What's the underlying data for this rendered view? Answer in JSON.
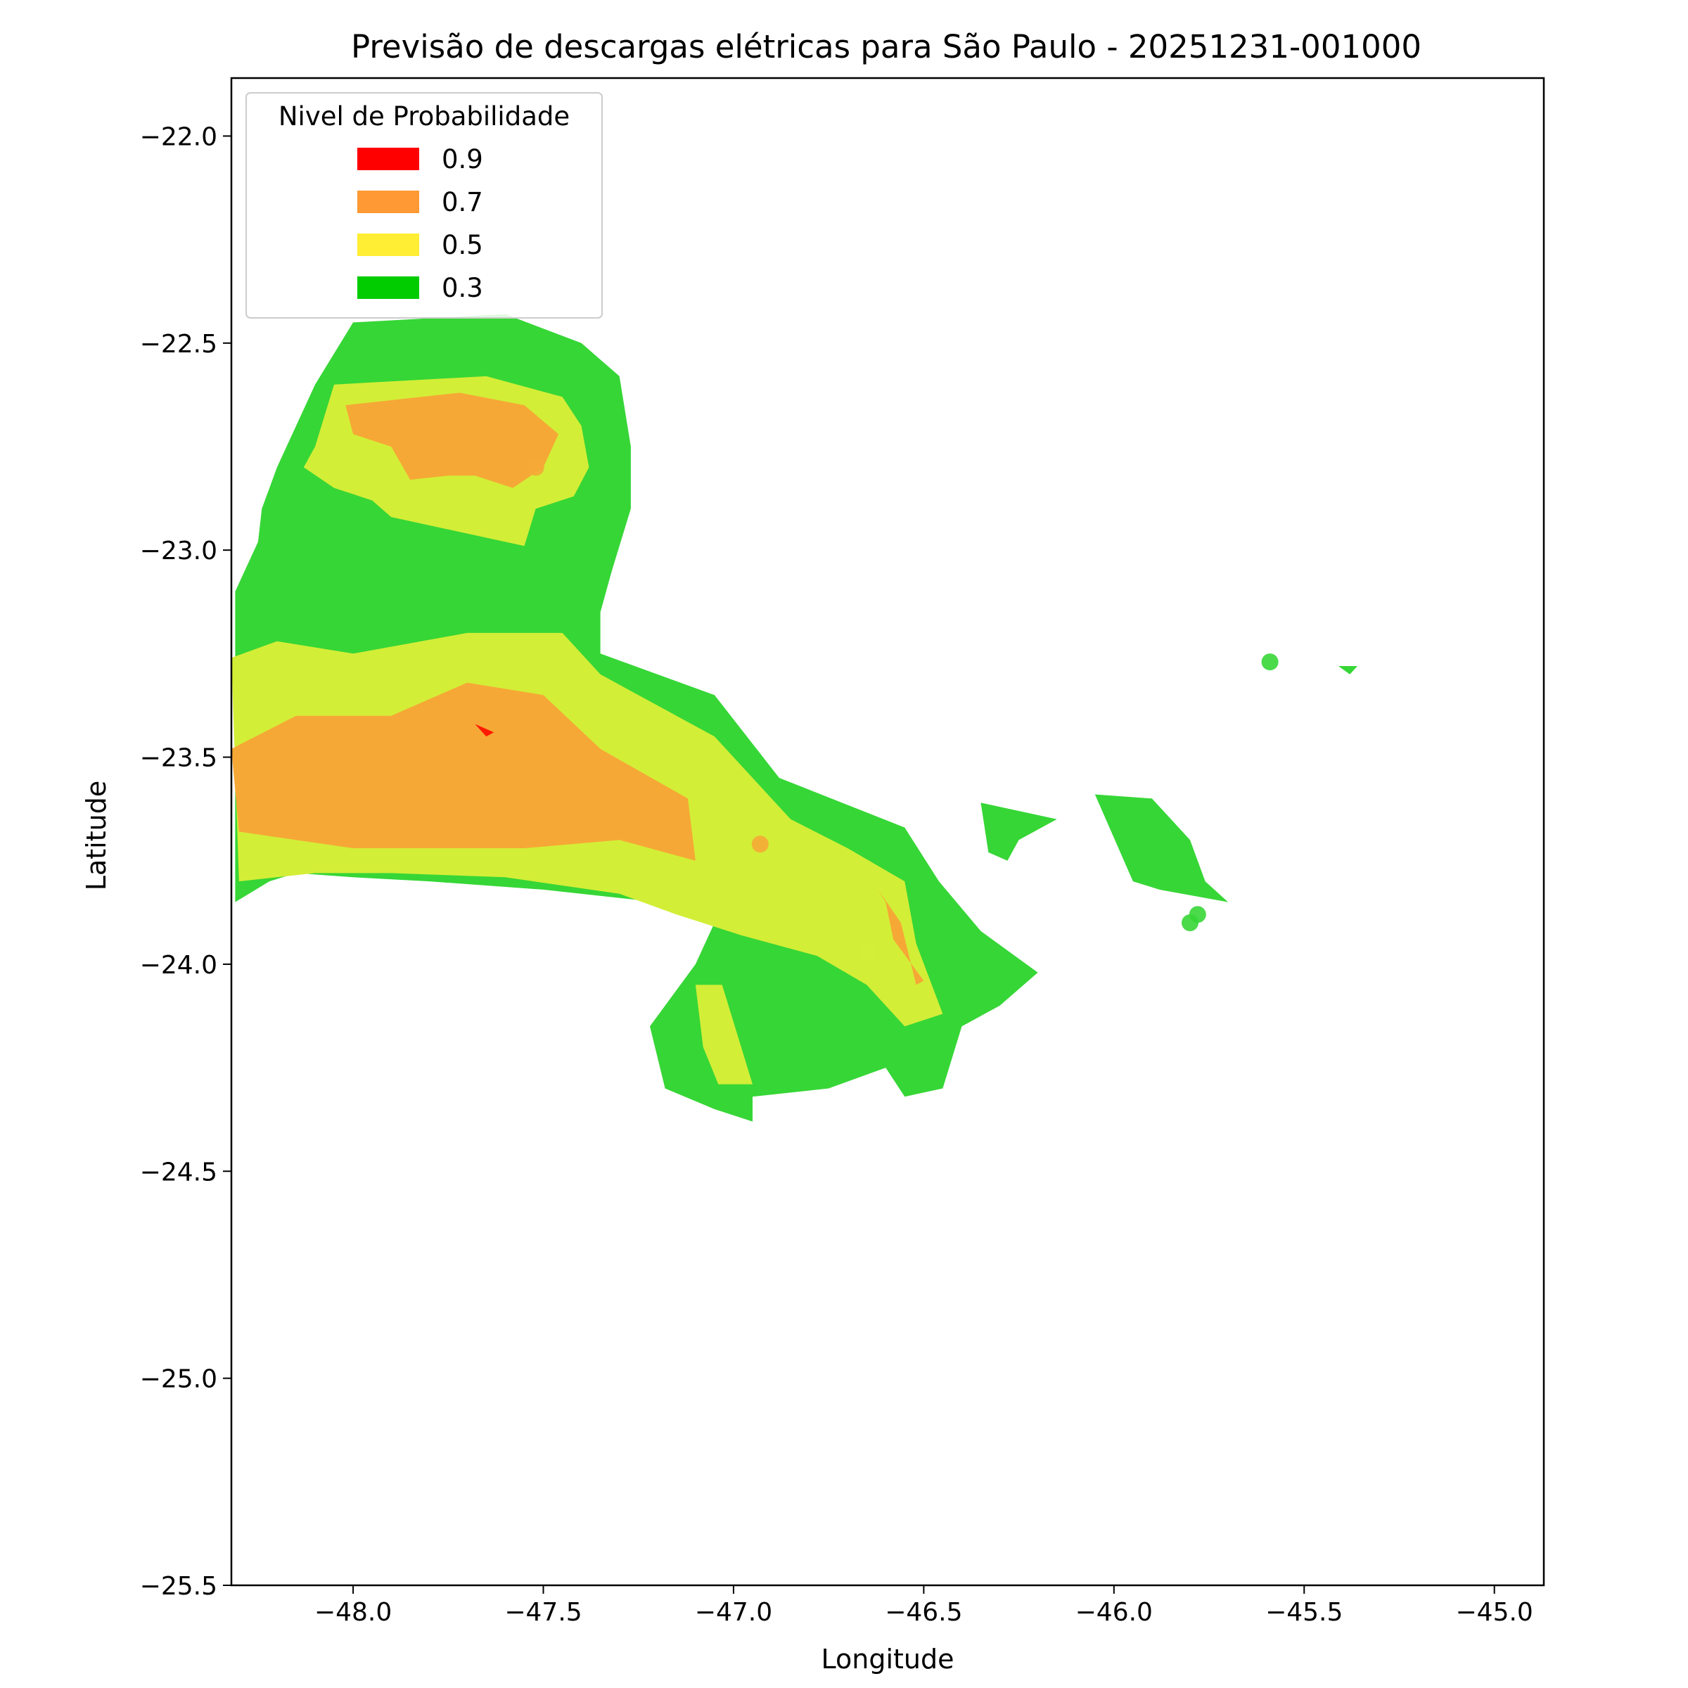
{
  "chart_data": {
    "type": "filled-contour",
    "title": "Previsão de descargas elétricas para São Paulo - 20251231-001000",
    "xlabel": "Longitude",
    "ylabel": "Latitude",
    "xlim": [
      -48.32,
      -44.87
    ],
    "ylim": [
      -25.5,
      -21.86
    ],
    "x_ticks": [
      -48.0,
      -47.5,
      -47.0,
      -46.5,
      -46.0,
      -45.5,
      -45.0
    ],
    "x_tick_labels": [
      "−48.0",
      "−47.5",
      "−47.0",
      "−46.5",
      "−46.0",
      "−45.5",
      "−45.0"
    ],
    "y_ticks": [
      -22.0,
      -22.5,
      -23.0,
      -23.5,
      -24.0,
      -24.5,
      -25.0,
      -25.5
    ],
    "y_tick_labels": [
      "−22.0",
      "−22.5",
      "−23.0",
      "−23.5",
      "−24.0",
      "−24.5",
      "−25.0",
      "−25.5"
    ],
    "grid": false,
    "legend": {
      "title": "Nivel de Probabilidade",
      "placement": "top-left",
      "entries": [
        {
          "label": "0.9",
          "color": "#ff0000"
        },
        {
          "label": "0.7",
          "color": "#ff9933"
        },
        {
          "label": "0.5",
          "color": "#ffee33"
        },
        {
          "label": "0.3",
          "color": "#00cc00"
        }
      ]
    },
    "region_colors": {
      "0.3": "#36d636",
      "0.5": "#d3ee37",
      "0.7": "#f6a836",
      "0.9": "#ff1a00"
    },
    "regions": [
      {
        "level": "0.3",
        "points": [
          [
            -48.0,
            -22.45
          ],
          [
            -47.6,
            -22.43
          ],
          [
            -47.4,
            -22.5
          ],
          [
            -47.3,
            -22.58
          ],
          [
            -47.27,
            -22.75
          ],
          [
            -47.27,
            -22.9
          ],
          [
            -47.32,
            -23.05
          ],
          [
            -47.35,
            -23.15
          ],
          [
            -47.35,
            -23.25
          ],
          [
            -47.05,
            -23.35
          ],
          [
            -46.88,
            -23.55
          ],
          [
            -46.55,
            -23.67
          ],
          [
            -46.46,
            -23.8
          ],
          [
            -46.35,
            -23.92
          ],
          [
            -46.2,
            -24.02
          ],
          [
            -46.3,
            -24.1
          ],
          [
            -46.4,
            -24.15
          ],
          [
            -46.45,
            -24.3
          ],
          [
            -46.55,
            -24.32
          ],
          [
            -46.6,
            -24.25
          ],
          [
            -46.75,
            -24.3
          ],
          [
            -46.95,
            -24.32
          ],
          [
            -46.95,
            -24.38
          ],
          [
            -47.05,
            -24.35
          ],
          [
            -47.18,
            -24.3
          ],
          [
            -47.22,
            -24.15
          ],
          [
            -47.1,
            -24.0
          ],
          [
            -47.05,
            -23.9
          ],
          [
            -47.2,
            -23.85
          ],
          [
            -47.5,
            -23.82
          ],
          [
            -47.8,
            -23.8
          ],
          [
            -48.0,
            -23.79
          ],
          [
            -48.15,
            -23.78
          ],
          [
            -48.22,
            -23.8
          ],
          [
            -48.31,
            -23.85
          ],
          [
            -48.31,
            -23.1
          ],
          [
            -48.25,
            -22.98
          ],
          [
            -48.24,
            -22.9
          ],
          [
            -48.2,
            -22.8
          ],
          [
            -48.1,
            -22.6
          ]
        ]
      },
      {
        "level": "0.5",
        "points": [
          [
            -48.1,
            -22.75
          ],
          [
            -48.05,
            -22.6
          ],
          [
            -47.65,
            -22.58
          ],
          [
            -47.45,
            -22.63
          ],
          [
            -47.4,
            -22.7
          ],
          [
            -47.38,
            -22.8
          ],
          [
            -47.42,
            -22.87
          ],
          [
            -47.52,
            -22.9
          ],
          [
            -47.55,
            -22.99
          ],
          [
            -47.65,
            -22.97
          ],
          [
            -47.9,
            -22.92
          ],
          [
            -47.95,
            -22.88
          ],
          [
            -48.05,
            -22.85
          ],
          [
            -48.13,
            -22.8
          ]
        ]
      },
      {
        "level": "0.7",
        "points": [
          [
            -48.02,
            -22.65
          ],
          [
            -47.72,
            -22.62
          ],
          [
            -47.55,
            -22.65
          ],
          [
            -47.46,
            -22.72
          ],
          [
            -47.5,
            -22.8
          ],
          [
            -47.58,
            -22.85
          ],
          [
            -47.68,
            -22.82
          ],
          [
            -47.75,
            -22.82
          ],
          [
            -47.85,
            -22.83
          ],
          [
            -47.9,
            -22.75
          ],
          [
            -48.0,
            -22.72
          ]
        ]
      },
      {
        "level": "0.5",
        "points": [
          [
            -48.32,
            -23.26
          ],
          [
            -48.2,
            -23.22
          ],
          [
            -48.0,
            -23.25
          ],
          [
            -47.7,
            -23.2
          ],
          [
            -47.45,
            -23.2
          ],
          [
            -47.35,
            -23.3
          ],
          [
            -47.15,
            -23.4
          ],
          [
            -47.05,
            -23.45
          ],
          [
            -46.95,
            -23.55
          ],
          [
            -46.85,
            -23.65
          ],
          [
            -46.7,
            -23.72
          ],
          [
            -46.55,
            -23.8
          ],
          [
            -46.52,
            -23.95
          ],
          [
            -46.45,
            -24.12
          ],
          [
            -46.55,
            -24.15
          ],
          [
            -46.65,
            -24.05
          ],
          [
            -46.78,
            -23.98
          ],
          [
            -46.98,
            -23.93
          ],
          [
            -47.15,
            -23.88
          ],
          [
            -47.3,
            -23.83
          ],
          [
            -47.6,
            -23.79
          ],
          [
            -47.9,
            -23.78
          ],
          [
            -48.1,
            -23.78
          ],
          [
            -48.3,
            -23.8
          ]
        ]
      },
      {
        "level": "0.5",
        "points": [
          [
            -47.1,
            -24.05
          ],
          [
            -47.03,
            -24.05
          ],
          [
            -46.95,
            -24.29
          ],
          [
            -47.04,
            -24.29
          ],
          [
            -47.08,
            -24.2
          ]
        ]
      },
      {
        "level": "0.7",
        "points": [
          [
            -48.32,
            -23.48
          ],
          [
            -48.15,
            -23.4
          ],
          [
            -47.9,
            -23.4
          ],
          [
            -47.7,
            -23.32
          ],
          [
            -47.5,
            -23.35
          ],
          [
            -47.35,
            -23.48
          ],
          [
            -47.12,
            -23.6
          ],
          [
            -47.1,
            -23.75
          ],
          [
            -47.3,
            -23.7
          ],
          [
            -47.55,
            -23.72
          ],
          [
            -47.8,
            -23.72
          ],
          [
            -48.0,
            -23.72
          ],
          [
            -48.3,
            -23.68
          ]
        ]
      },
      {
        "level": "0.7",
        "points": [
          [
            -46.62,
            -23.82
          ],
          [
            -46.56,
            -23.9
          ],
          [
            -46.52,
            -24.05
          ],
          [
            -46.5,
            -24.04
          ],
          [
            -46.58,
            -23.94
          ],
          [
            -46.6,
            -23.85
          ]
        ]
      },
      {
        "level": "0.9",
        "points": [
          [
            -47.68,
            -23.42
          ],
          [
            -47.65,
            -23.45
          ],
          [
            -47.63,
            -23.44
          ]
        ]
      },
      {
        "level": "0.3",
        "points": [
          [
            -46.35,
            -23.61
          ],
          [
            -46.15,
            -23.65
          ],
          [
            -46.25,
            -23.7
          ],
          [
            -46.28,
            -23.75
          ],
          [
            -46.33,
            -23.73
          ]
        ]
      },
      {
        "level": "0.3",
        "points": [
          [
            -46.05,
            -23.59
          ],
          [
            -45.9,
            -23.6
          ],
          [
            -45.8,
            -23.7
          ],
          [
            -45.76,
            -23.8
          ],
          [
            -45.7,
            -23.85
          ],
          [
            -45.88,
            -23.82
          ],
          [
            -45.95,
            -23.8
          ]
        ]
      },
      {
        "level": "0.3",
        "points": [
          [
            -45.41,
            -23.28
          ],
          [
            -45.36,
            -23.28
          ],
          [
            -45.38,
            -23.3
          ]
        ]
      }
    ],
    "points": [
      {
        "lon": -47.52,
        "lat": -22.8,
        "level": "0.7"
      },
      {
        "lon": -48.16,
        "lat": -23.01,
        "level": "0.3"
      },
      {
        "lon": -46.93,
        "lat": -23.71,
        "level": "0.7"
      },
      {
        "lon": -46.65,
        "lat": -23.97,
        "level": "0.5"
      },
      {
        "lon": -45.59,
        "lat": -23.27,
        "level": "0.3"
      },
      {
        "lon": -45.8,
        "lat": -23.9,
        "level": "0.3"
      },
      {
        "lon": -45.78,
        "lat": -23.88,
        "level": "0.3"
      }
    ]
  }
}
